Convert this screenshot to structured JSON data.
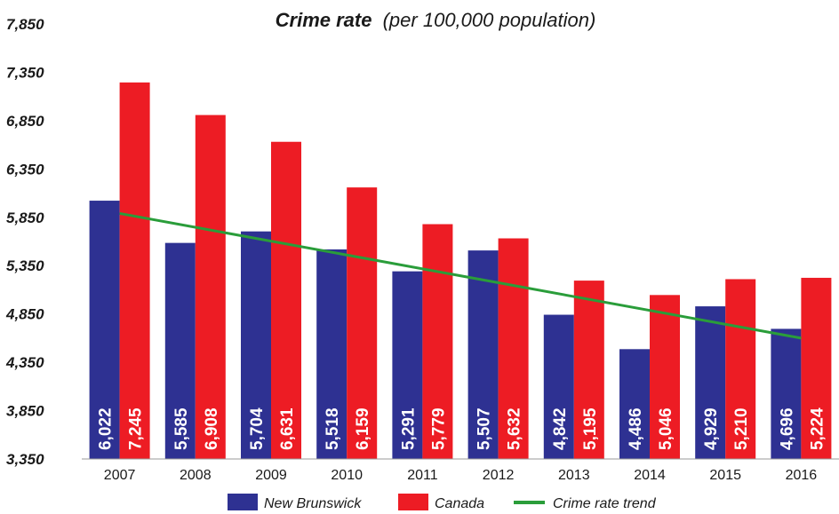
{
  "chart_data": {
    "type": "bar",
    "title": "Crime rate",
    "subtitle": "(per 100,000 population)",
    "categories": [
      "2007",
      "2008",
      "2009",
      "2010",
      "2011",
      "2012",
      "2013",
      "2014",
      "2015",
      "2016"
    ],
    "series": [
      {
        "name": "New Brunswick",
        "color": "#2e3192",
        "values": [
          6022,
          5585,
          5704,
          5518,
          5291,
          5507,
          4842,
          4486,
          4929,
          4696
        ],
        "labels": [
          "6,022",
          "5,585",
          "5,704",
          "5,518",
          "5,291",
          "5,507",
          "4,842",
          "4,486",
          "4,929",
          "4,696"
        ]
      },
      {
        "name": "Canada",
        "color": "#ed1c24",
        "values": [
          7245,
          6908,
          6631,
          6159,
          5779,
          5632,
          5195,
          5046,
          5210,
          5224
        ],
        "labels": [
          "7,245",
          "6,908",
          "6,631",
          "6,159",
          "5,779",
          "5,632",
          "5,195",
          "5,046",
          "5,210",
          "5,224"
        ]
      }
    ],
    "trend": {
      "name": "Crime rate trend",
      "color": "#2a9d3a",
      "start": 5890,
      "end": 4600
    },
    "ylim": [
      3350,
      7850
    ],
    "yticks": [
      3350,
      3850,
      4350,
      4850,
      5350,
      5850,
      6350,
      6850,
      7350,
      7850
    ],
    "ytick_labels": [
      "3,350",
      "3,850",
      "4,350",
      "4,850",
      "5,350",
      "5,850",
      "6,350",
      "6,850",
      "7,350",
      "7,850"
    ],
    "grid": false,
    "legend_position": "bottom"
  }
}
